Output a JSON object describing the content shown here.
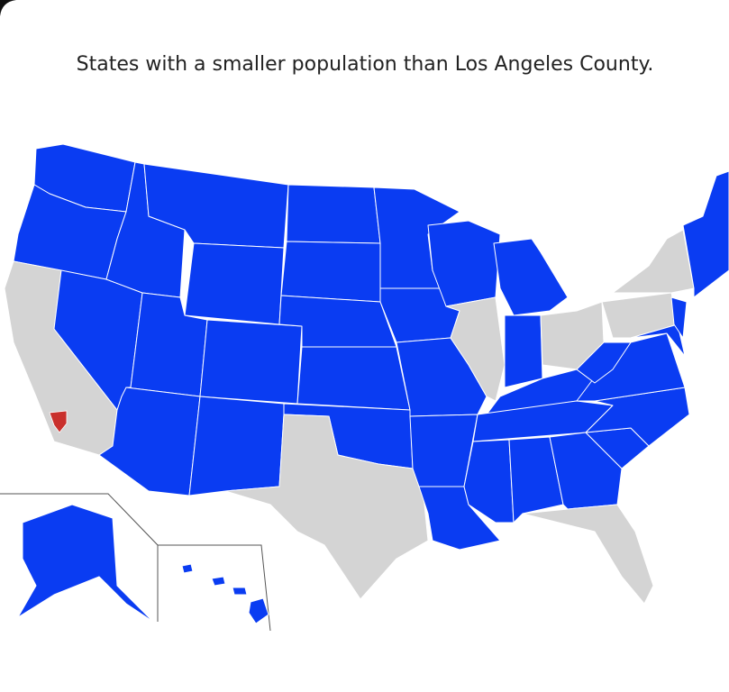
{
  "title": "States with a smaller population than Los Angeles County."
}
